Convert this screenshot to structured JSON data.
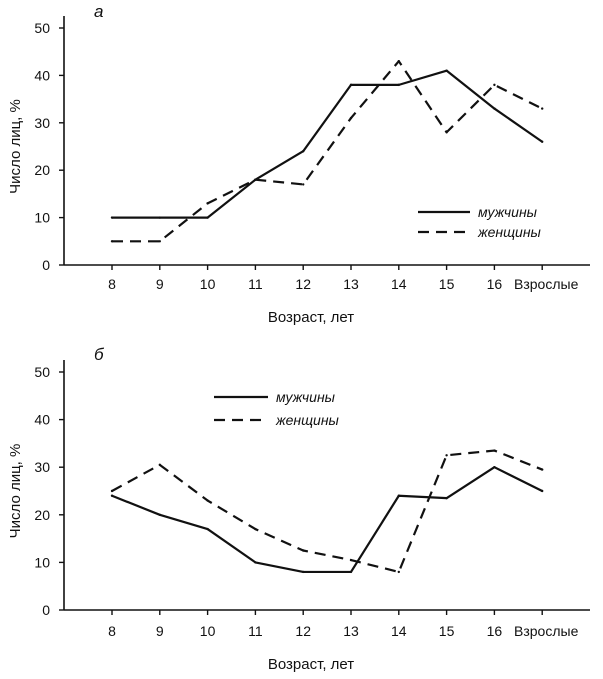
{
  "chart_data": [
    {
      "type": "line",
      "panel_label": "а",
      "categories": [
        "8",
        "9",
        "10",
        "11",
        "12",
        "13",
        "14",
        "15",
        "16",
        "Взрослые"
      ],
      "series": [
        {
          "name": "мужчины",
          "style": "solid",
          "values": [
            10,
            10,
            10,
            18,
            24,
            38,
            38,
            41,
            33,
            26
          ]
        },
        {
          "name": "женщины",
          "style": "dashed",
          "values": [
            5,
            5,
            13,
            18,
            17,
            31,
            43,
            28,
            38,
            33
          ]
        }
      ],
      "xlabel": "Возраст, лет",
      "ylabel": "Число лиц, %",
      "ylim": [
        0,
        50
      ],
      "yticks": [
        "0",
        "10",
        "20",
        "30",
        "40",
        "50"
      ],
      "grid": false,
      "legend_position": "right"
    },
    {
      "type": "line",
      "panel_label": "б",
      "categories": [
        "8",
        "9",
        "10",
        "11",
        "12",
        "13",
        "14",
        "15",
        "16",
        "Взрослые"
      ],
      "series": [
        {
          "name": "мужчины",
          "style": "solid",
          "values": [
            24,
            20,
            17,
            10,
            8,
            8,
            24,
            23.5,
            30,
            25
          ]
        },
        {
          "name": "женщины",
          "style": "dashed",
          "values": [
            25,
            30.5,
            23,
            17,
            12.5,
            10.5,
            8,
            32.5,
            33.5,
            29.5
          ]
        }
      ],
      "xlabel": "Возраст, лет",
      "ylabel": "Число лиц, %",
      "ylim": [
        0,
        50
      ],
      "yticks": [
        "0",
        "10",
        "20",
        "30",
        "40",
        "50"
      ],
      "grid": false,
      "legend_position": "top-left"
    }
  ]
}
